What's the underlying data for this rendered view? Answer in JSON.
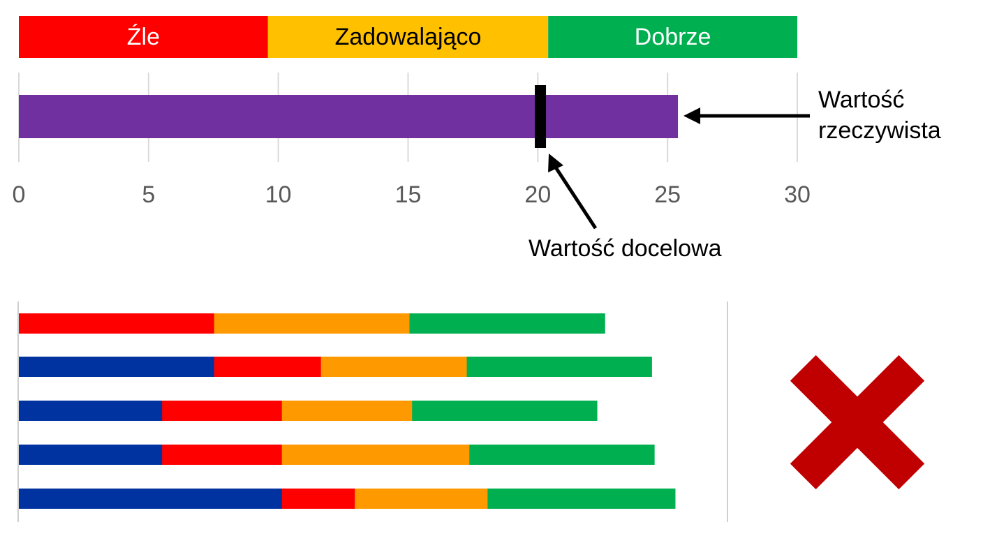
{
  "chart_data": [
    {
      "type": "bullet",
      "xlim": [
        0,
        30
      ],
      "x_ticks": [
        0,
        5,
        10,
        15,
        20,
        25,
        30
      ],
      "grid": true,
      "bands": [
        {
          "label": "Źle",
          "from": 0,
          "to": 9.6,
          "color": "#FF0000",
          "text_color": "#FFFFFF"
        },
        {
          "label": "Zadowalająco",
          "from": 9.6,
          "to": 20.4,
          "color": "#FFC000",
          "text_color": "#000000"
        },
        {
          "label": "Dobrze",
          "from": 20.4,
          "to": 30,
          "color": "#00B050",
          "text_color": "#FFFFFF"
        }
      ],
      "actual": {
        "value": 25.4,
        "color": "#7030A0"
      },
      "target": {
        "value": 20.1,
        "color": "#000000"
      },
      "annotations": {
        "actual": [
          "Wartość",
          "rzeczywista"
        ],
        "target": "Wartość docelowa"
      }
    },
    {
      "type": "bar",
      "orientation": "horizontal",
      "stacked": true,
      "xlim": [
        0,
        30
      ],
      "colors": [
        "#0033A0",
        "#FF0000",
        "#FF9900",
        "#00B050"
      ],
      "rows": [
        [
          0,
          7.5,
          7.5,
          7.5
        ],
        [
          7.5,
          4.1,
          5.6,
          7.1
        ],
        [
          5.5,
          4.6,
          5.0,
          7.1
        ],
        [
          5.5,
          4.6,
          7.2,
          7.1
        ],
        [
          10.1,
          2.8,
          5.1,
          7.2
        ]
      ],
      "marker": {
        "icon": "cross-icon",
        "color": "#C00000"
      }
    }
  ]
}
